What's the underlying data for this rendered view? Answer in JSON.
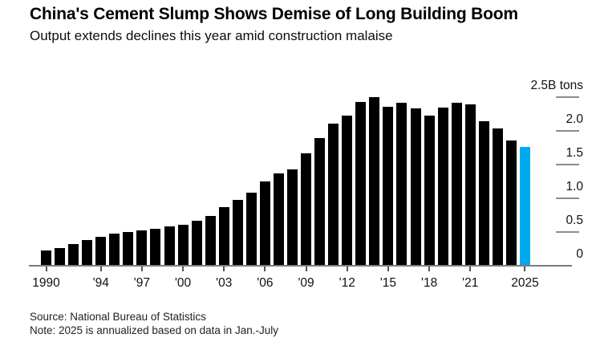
{
  "header": {
    "title": "China's Cement Slump Shows Demise of Long Building Boom",
    "subtitle": "Output extends declines this year amid construction malaise"
  },
  "footer": {
    "source": "Source: National Bureau of Statistics",
    "note": "Note: 2025 is annualized based on data in Jan.-July"
  },
  "chart_data": {
    "type": "bar",
    "title": "China's Cement Slump Shows Demise of Long Building Boom",
    "subtitle": "Output extends declines this year amid construction malaise",
    "unit": "B tons",
    "ylabel": "2.5B tons",
    "xlabel": "",
    "ylim": [
      0,
      2.5
    ],
    "grid": false,
    "legend_position": "none",
    "categories": [
      1990,
      1991,
      1992,
      1993,
      1994,
      1995,
      1996,
      1997,
      1998,
      1999,
      2000,
      2001,
      2002,
      2003,
      2004,
      2005,
      2006,
      2007,
      2008,
      2009,
      2010,
      2011,
      2012,
      2013,
      2014,
      2015,
      2016,
      2017,
      2018,
      2019,
      2020,
      2021,
      2022,
      2023,
      2024,
      2025
    ],
    "values": [
      0.21,
      0.25,
      0.31,
      0.37,
      0.42,
      0.47,
      0.49,
      0.51,
      0.54,
      0.57,
      0.6,
      0.66,
      0.73,
      0.86,
      0.97,
      1.07,
      1.24,
      1.36,
      1.42,
      1.65,
      1.88,
      2.09,
      2.21,
      2.42,
      2.49,
      2.35,
      2.4,
      2.32,
      2.21,
      2.33,
      2.4,
      2.38,
      2.13,
      2.02,
      1.85,
      1.75
    ],
    "highlight_year": 2025,
    "x_ticks": [
      {
        "year": 1990,
        "label": "1990"
      },
      {
        "year": 1994,
        "label": "'94"
      },
      {
        "year": 1997,
        "label": "'97"
      },
      {
        "year": 2000,
        "label": "'00"
      },
      {
        "year": 2003,
        "label": "'03"
      },
      {
        "year": 2006,
        "label": "'06"
      },
      {
        "year": 2009,
        "label": "'09"
      },
      {
        "year": 2012,
        "label": "'12"
      },
      {
        "year": 2015,
        "label": "'15"
      },
      {
        "year": 2018,
        "label": "'18"
      },
      {
        "year": 2021,
        "label": "'21"
      },
      {
        "year": 2025,
        "label": "2025"
      }
    ],
    "y_ticks": [
      {
        "value": 0,
        "label": "0"
      },
      {
        "value": 0.5,
        "label": "0.5"
      },
      {
        "value": 1.0,
        "label": "1.0"
      },
      {
        "value": 1.5,
        "label": "1.5"
      },
      {
        "value": 2.0,
        "label": "2.0"
      },
      {
        "value": 2.5,
        "label": "2.5B tons"
      }
    ],
    "colors": {
      "bar": "#000000",
      "highlight": "#00a9f0",
      "axis_line": "#7b7b7b",
      "x_tick": "#555555",
      "y_dash": "#8c8c8c"
    }
  }
}
